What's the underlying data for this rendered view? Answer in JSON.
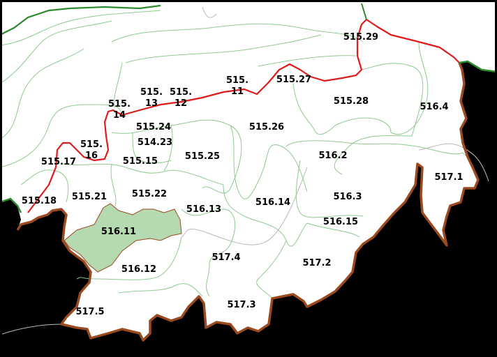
{
  "colors": {
    "outside_area": "#eaece9",
    "selected_parcel": "#b5d9b0",
    "outer_boundary": "#9b4a1f",
    "red_boundary": "#e01b1b",
    "green_boundary": "#2d8a2d",
    "parcel_lines": "#8fc98f"
  },
  "selected_parcel": "516.11",
  "labels": [
    {
      "id": "515.29",
      "lines": [
        "515.29"
      ]
    },
    {
      "id": "515.27",
      "lines": [
        "515.27"
      ]
    },
    {
      "id": "515.28",
      "lines": [
        "515.28"
      ]
    },
    {
      "id": "516.4",
      "lines": [
        "516.4"
      ]
    },
    {
      "id": "515.11",
      "lines": [
        "515.",
        "11"
      ]
    },
    {
      "id": "515.13",
      "lines": [
        "515.",
        "13"
      ]
    },
    {
      "id": "515.12",
      "lines": [
        "515.",
        "12"
      ]
    },
    {
      "id": "515.14",
      "lines": [
        "515.",
        "14"
      ]
    },
    {
      "id": "515.24",
      "lines": [
        "515.24"
      ]
    },
    {
      "id": "515.26",
      "lines": [
        "515.26"
      ]
    },
    {
      "id": "514.23",
      "lines": [
        "514.23"
      ]
    },
    {
      "id": "515.16",
      "lines": [
        "515.",
        "16"
      ]
    },
    {
      "id": "515.17",
      "lines": [
        "515.17"
      ]
    },
    {
      "id": "515.15",
      "lines": [
        "515.15"
      ]
    },
    {
      "id": "515.25",
      "lines": [
        "515.25"
      ]
    },
    {
      "id": "516.2",
      "lines": [
        "516.2"
      ]
    },
    {
      "id": "517.1",
      "lines": [
        "517.1"
      ]
    },
    {
      "id": "515.21",
      "lines": [
        "515.21"
      ]
    },
    {
      "id": "515.22",
      "lines": [
        "515.22"
      ]
    },
    {
      "id": "516.3",
      "lines": [
        "516.3"
      ]
    },
    {
      "id": "515.18",
      "lines": [
        "515.18"
      ]
    },
    {
      "id": "516.13",
      "lines": [
        "516.13"
      ]
    },
    {
      "id": "516.14",
      "lines": [
        "516.14"
      ]
    },
    {
      "id": "516.15",
      "lines": [
        "516.15"
      ]
    },
    {
      "id": "516.11",
      "lines": [
        "516.11"
      ]
    },
    {
      "id": "517.4",
      "lines": [
        "517.4"
      ]
    },
    {
      "id": "517.2",
      "lines": [
        "517.2"
      ]
    },
    {
      "id": "516.12",
      "lines": [
        "516.12"
      ]
    },
    {
      "id": "517.3",
      "lines": [
        "517.3"
      ]
    },
    {
      "id": "517.5",
      "lines": [
        "517.5"
      ]
    }
  ]
}
